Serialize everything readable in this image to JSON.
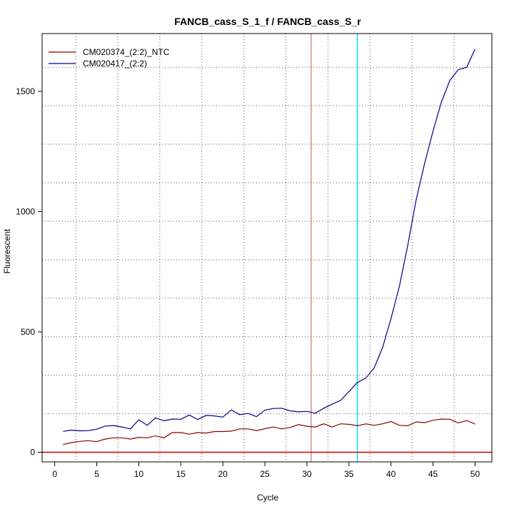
{
  "chart_data": {
    "type": "line",
    "title": "FANCB_cass_S_1_f / FANCB_cass_S_r",
    "xlabel": "Cycle",
    "ylabel": "Fluorescent",
    "xlim": [
      -1.5,
      52
    ],
    "ylim": [
      -40,
      1740
    ],
    "x_ticks": [
      0,
      5,
      10,
      15,
      20,
      25,
      30,
      35,
      40,
      45,
      50
    ],
    "x_tick_labels": [
      "0",
      "5",
      "10",
      "15",
      "20",
      "25",
      "30",
      "35",
      "40",
      "45",
      "50"
    ],
    "y_ticks": [
      0,
      500,
      1000,
      1500
    ],
    "y_tick_labels": [
      "0",
      "500",
      "1000",
      "1500"
    ],
    "grid": true,
    "grid_x": [
      2.5,
      7.5,
      12.5,
      17.5,
      22.5,
      27.5,
      32.5,
      37.5,
      42.5,
      47.5,
      52.5
    ],
    "grid_y": [
      0,
      160,
      320,
      480,
      640,
      800,
      960,
      1120,
      1280,
      1440,
      1600,
      1760
    ],
    "legend_position": "top-left",
    "series": [
      {
        "name": "CM020374_(2:2)_NTC",
        "color": "#8b0000",
        "x": [
          1,
          2,
          3,
          4,
          5,
          6,
          7,
          8,
          9,
          10,
          11,
          12,
          13,
          14,
          15,
          16,
          17,
          18,
          19,
          20,
          21,
          22,
          23,
          24,
          25,
          26,
          27,
          28,
          29,
          30,
          31,
          32,
          33,
          34,
          35,
          36,
          37,
          38,
          39,
          40,
          41,
          42,
          43,
          44,
          45,
          46,
          47,
          48,
          49,
          50
        ],
        "values": [
          32,
          40,
          45,
          48,
          44,
          55,
          60,
          60,
          55,
          62,
          60,
          68,
          60,
          82,
          82,
          75,
          82,
          80,
          86,
          86,
          88,
          97,
          97,
          90,
          98,
          105,
          97,
          103,
          115,
          108,
          105,
          118,
          105,
          118,
          116,
          110,
          118,
          112,
          118,
          128,
          112,
          110,
          126,
          123,
          133,
          138,
          137,
          122,
          132,
          117
        ]
      },
      {
        "name": "CM020417_(2:2)",
        "color": "#00008b",
        "x": [
          1,
          2,
          3,
          4,
          5,
          6,
          7,
          8,
          9,
          10,
          11,
          12,
          13,
          14,
          15,
          16,
          17,
          18,
          19,
          20,
          21,
          22,
          23,
          24,
          25,
          26,
          27,
          28,
          29,
          30,
          31,
          32,
          33,
          34,
          35,
          36,
          37,
          38,
          39,
          40,
          41,
          42,
          43,
          44,
          45,
          46,
          47,
          48,
          49,
          50
        ],
        "values": [
          87,
          92,
          89,
          90,
          96,
          109,
          111,
          105,
          97,
          135,
          112,
          143,
          131,
          138,
          137,
          155,
          136,
          153,
          151,
          146,
          176,
          156,
          161,
          148,
          175,
          182,
          183,
          172,
          168,
          170,
          162,
          183,
          200,
          215,
          252,
          290,
          308,
          350,
          435,
          555,
          690,
          860,
          1050,
          1200,
          1335,
          1455,
          1545,
          1590,
          1600,
          1675
        ]
      }
    ],
    "threshold_line": {
      "y": 0,
      "color": "#cc0000"
    },
    "vertical_lines": [
      {
        "x": 30.5,
        "color": "#c05050"
      },
      {
        "x": 36,
        "color": "#00e5e5"
      }
    ]
  }
}
